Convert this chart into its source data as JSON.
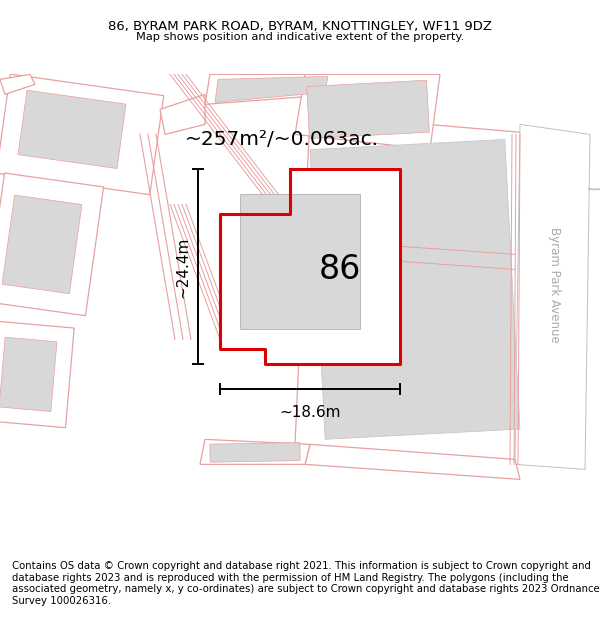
{
  "title_line1": "86, BYRAM PARK ROAD, BYRAM, KNOTTINGLEY, WF11 9DZ",
  "title_line2": "Map shows position and indicative extent of the property.",
  "footer_text": "Contains OS data © Crown copyright and database right 2021. This information is subject to Crown copyright and database rights 2023 and is reproduced with the permission of HM Land Registry. The polygons (including the associated geometry, namely x, y co-ordinates) are subject to Crown copyright and database rights 2023 Ordnance Survey 100026316.",
  "area_label": "~257m²/~0.063ac.",
  "number_label": "86",
  "dim_width": "~18.6m",
  "dim_height": "~24.4m",
  "road_label": "Byram Park Avenue",
  "bg_color": "#ffffff",
  "map_bg": "#ffffff",
  "highlight_color": "#dd0000",
  "cadastral_color": "#e8a0a0",
  "building_color": "#d8d8d8",
  "title_fontsize": 9.5,
  "footer_fontsize": 7.5,
  "cadastral_lw": 0.9,
  "highlight_lw": 2.2
}
